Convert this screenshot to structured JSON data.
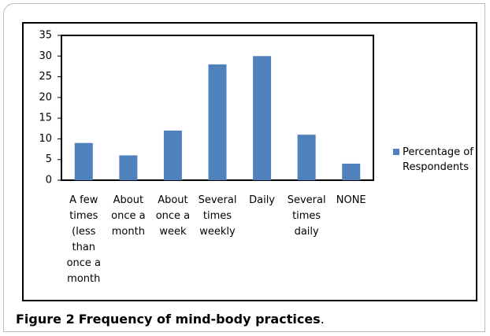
{
  "chart_data": {
    "type": "bar",
    "categories": [
      "A few times (less than once a month",
      "About once a month",
      "About once a week",
      "Several times weekly",
      "Daily",
      "Several times daily",
      "NONE"
    ],
    "series": [
      {
        "name": "Percentage of Respondents",
        "color": "#4f81bd",
        "values": [
          9,
          6,
          12,
          28,
          30,
          11,
          4
        ]
      }
    ],
    "ylim": [
      0,
      35
    ],
    "yticks": [
      0,
      5,
      10,
      15,
      20,
      25,
      30,
      35
    ],
    "grid": false,
    "legend": "right"
  },
  "caption": {
    "label": "Figure 2",
    "text": "Frequency of mind-body practices",
    "end": "."
  }
}
